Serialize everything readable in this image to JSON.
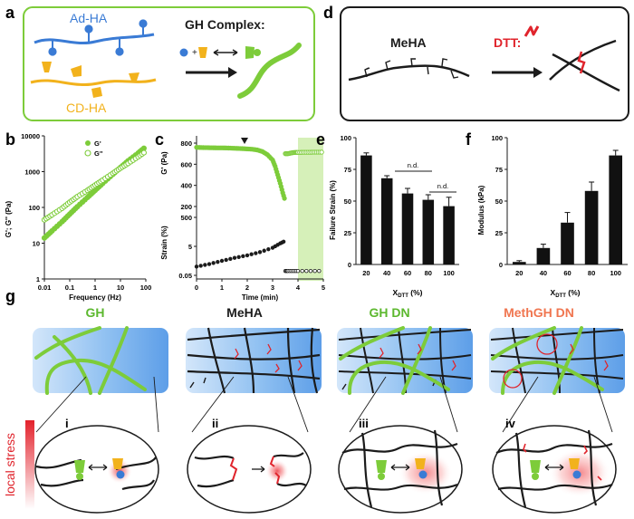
{
  "colors": {
    "green": "#7dcc3a",
    "dark_green": "#5cb82e",
    "blue": "#3a7bd5",
    "orange": "#f2b21c",
    "red": "#e0242c",
    "salmon": "#f07650",
    "black": "#1b1b1b"
  },
  "panel_a": {
    "letter": "a",
    "ad_ha": "Ad-HA",
    "cd_ha": "CD-HA",
    "gh_complex": "GH Complex:"
  },
  "panel_d": {
    "letter": "d",
    "meha": "MeHA",
    "dtt": "DTT:"
  },
  "panel_b": {
    "letter": "b",
    "ylabel": "G'; G'' (Pa)",
    "xlabel": "Frequency (Hz)",
    "legend": [
      "G'",
      "G''"
    ],
    "y_ticks": [
      "10000",
      "1000",
      "100",
      "10",
      "1"
    ],
    "x_ticks": [
      "0.01",
      "0.1",
      "1",
      "10",
      "100"
    ]
  },
  "panel_c": {
    "letter": "c",
    "ylabel_top": "G' (Pa)",
    "ylabel_bottom": "Strain (%)",
    "xlabel": "Time (min)",
    "y_ticks_top": [
      "800",
      "600",
      "400",
      "200"
    ],
    "y_ticks_bottom": [
      "500",
      "5",
      "0.05"
    ],
    "x_ticks": [
      "0",
      "1",
      "2",
      "3",
      "4",
      "5"
    ]
  },
  "panel_e": {
    "letter": "e",
    "ylabel": "Failure Strain (%)",
    "xlabel": "X",
    "xlabel_sub": "DTT",
    "xlabel_unit": " (%)",
    "nd": [
      "n.d.",
      "n.d."
    ],
    "y_ticks": [
      "100",
      "75",
      "50",
      "25",
      "0"
    ]
  },
  "panel_f": {
    "letter": "f",
    "ylabel": "Modulus (kPa)",
    "xlabel": "X",
    "xlabel_sub": "DTT",
    "xlabel_unit": " (%)",
    "y_ticks": [
      "100",
      "75",
      "50",
      "25",
      "0"
    ]
  },
  "chart_data": [
    {
      "type": "line",
      "id": "b",
      "xlabel": "Frequency (Hz)",
      "ylabel": "G'; G'' (Pa)",
      "log_x": true,
      "log_y": true,
      "xlim": [
        0.01,
        100
      ],
      "ylim": [
        1,
        10000
      ],
      "series": [
        {
          "name": "G'",
          "x": [
            0.01,
            0.02,
            0.05,
            0.1,
            0.2,
            0.5,
            1,
            2,
            5,
            10,
            20,
            50,
            100
          ],
          "y": [
            14,
            22,
            40,
            65,
            105,
            190,
            300,
            470,
            840,
            1300,
            2000,
            3300,
            5000
          ]
        },
        {
          "name": "G''",
          "x": [
            0.01,
            0.02,
            0.05,
            0.1,
            0.2,
            0.5,
            1,
            2,
            5,
            10,
            20,
            50,
            100
          ],
          "y": [
            45,
            62,
            95,
            140,
            200,
            300,
            420,
            580,
            900,
            1250,
            1700,
            2600,
            3700
          ]
        }
      ]
    },
    {
      "type": "scatter",
      "id": "c",
      "xlabel": "Time (min)",
      "xlim": [
        0,
        5
      ],
      "series": [
        {
          "ylabel": "G' (Pa)",
          "ylim": [
            200,
            800
          ],
          "x": [
            0,
            0.2,
            0.4,
            0.6,
            0.8,
            1,
            1.2,
            1.4,
            1.6,
            1.8,
            2,
            2.2,
            2.4,
            2.6,
            2.8,
            3,
            3.1,
            3.2,
            3.3,
            3.4,
            3.5,
            3.6,
            3.7,
            3.8,
            3.9,
            4,
            4.2,
            4.4,
            4.6,
            4.8,
            5
          ],
          "y": [
            760,
            758,
            757,
            756,
            755,
            755,
            754,
            752,
            750,
            748,
            745,
            742,
            735,
            720,
            690,
            640,
            580,
            500,
            420,
            330,
            250,
            700,
            705,
            710,
            712,
            712,
            713,
            713,
            714,
            714,
            715
          ]
        },
        {
          "ylabel": "Strain (%)",
          "log_y": true,
          "ylim": [
            0.05,
            500
          ],
          "x": [
            0,
            0.5,
            1,
            1.5,
            2,
            2.5,
            3,
            3.3,
            3.5,
            3.6,
            3.8,
            4,
            4.5,
            5
          ],
          "y": [
            0.2,
            0.3,
            0.5,
            0.8,
            1.2,
            2,
            4,
            8,
            12,
            0.1,
            0.1,
            0.1,
            0.1,
            0.1
          ]
        }
      ]
    },
    {
      "type": "bar",
      "id": "e",
      "ylabel": "Failure Strain (%)",
      "xlabel": "XDTT (%)",
      "ylim": [
        0,
        100
      ],
      "categories": [
        "20",
        "40",
        "60",
        "80",
        "100"
      ],
      "values": [
        86,
        68,
        56,
        51,
        46
      ],
      "errors": [
        2,
        2,
        4,
        4,
        7
      ]
    },
    {
      "type": "bar",
      "id": "f",
      "ylabel": "Modulus (kPa)",
      "xlabel": "XDTT (%)",
      "ylim": [
        0,
        100
      ],
      "categories": [
        "20",
        "40",
        "60",
        "80",
        "100"
      ],
      "values": [
        2,
        13,
        33,
        58,
        86
      ],
      "errors": [
        1,
        3,
        8,
        7,
        4
      ]
    }
  ],
  "panel_g": {
    "letter": "g",
    "titles": [
      "GH",
      "MeHA",
      "GH DN",
      "MethGH DN"
    ],
    "roman": [
      "i",
      "ii",
      "iii",
      "iv"
    ],
    "local_stress": "local stress"
  }
}
